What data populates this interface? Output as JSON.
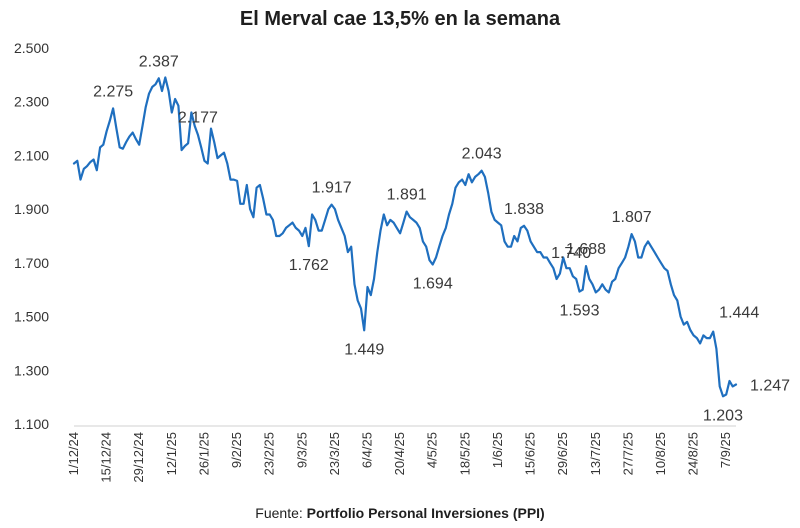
{
  "header": {
    "title": "El Merval cae 13,5% en la semana"
  },
  "footer": {
    "source_prefix": "Fuente:",
    "source_name": "Portfolio Personal Inversiones (PPI)"
  },
  "chart_data": {
    "type": "line",
    "title": "El Merval cae 13,5% en la semana",
    "xlabel": "",
    "ylabel": "",
    "ylim": [
      1100,
      2500
    ],
    "yticks": [
      1100,
      1300,
      1500,
      1700,
      1900,
      2100,
      2300,
      2500
    ],
    "ytick_labels": [
      "1.100",
      "1.300",
      "1.500",
      "1.700",
      "1.900",
      "2.100",
      "2.300",
      "2.500"
    ],
    "xticks": [
      {
        "index": 0,
        "label": "1/12/24"
      },
      {
        "index": 10,
        "label": "15/12/24"
      },
      {
        "index": 20,
        "label": "29/12/24"
      },
      {
        "index": 30,
        "label": "12/1/25"
      },
      {
        "index": 40,
        "label": "26/1/25"
      },
      {
        "index": 50,
        "label": "9/2/25"
      },
      {
        "index": 60,
        "label": "23/2/25"
      },
      {
        "index": 70,
        "label": "9/3/25"
      },
      {
        "index": 80,
        "label": "23/3/25"
      },
      {
        "index": 90,
        "label": "6/4/25"
      },
      {
        "index": 100,
        "label": "20/4/25"
      },
      {
        "index": 110,
        "label": "4/5/25"
      },
      {
        "index": 120,
        "label": "18/5/25"
      },
      {
        "index": 130,
        "label": "1/6/25"
      },
      {
        "index": 140,
        "label": "15/6/25"
      },
      {
        "index": 150,
        "label": "29/6/25"
      },
      {
        "index": 160,
        "label": "13/7/25"
      },
      {
        "index": 170,
        "label": "27/7/25"
      },
      {
        "index": 180,
        "label": "10/8/25"
      },
      {
        "index": 190,
        "label": "24/8/25"
      },
      {
        "index": 200,
        "label": "7/9/25"
      }
    ],
    "series": [
      {
        "name": "Merval",
        "color": "#1f6fbf",
        "values": [
          2070,
          2080,
          2010,
          2050,
          2060,
          2075,
          2085,
          2045,
          2130,
          2140,
          2190,
          2230,
          2275,
          2200,
          2130,
          2125,
          2150,
          2170,
          2185,
          2160,
          2140,
          2210,
          2280,
          2330,
          2355,
          2365,
          2387,
          2340,
          2390,
          2340,
          2260,
          2310,
          2285,
          2120,
          2135,
          2145,
          2260,
          2210,
          2177,
          2130,
          2080,
          2070,
          2200,
          2150,
          2090,
          2100,
          2110,
          2070,
          2010,
          2010,
          2005,
          1920,
          1920,
          1990,
          1900,
          1870,
          1980,
          1990,
          1940,
          1880,
          1880,
          1860,
          1800,
          1800,
          1810,
          1830,
          1840,
          1850,
          1830,
          1820,
          1800,
          1830,
          1762,
          1880,
          1860,
          1820,
          1820,
          1860,
          1900,
          1917,
          1900,
          1860,
          1830,
          1800,
          1740,
          1760,
          1620,
          1560,
          1530,
          1449,
          1610,
          1580,
          1640,
          1740,
          1820,
          1880,
          1840,
          1860,
          1850,
          1830,
          1810,
          1850,
          1891,
          1870,
          1860,
          1850,
          1830,
          1780,
          1760,
          1710,
          1694,
          1720,
          1760,
          1800,
          1830,
          1880,
          1920,
          1980,
          2000,
          2010,
          1990,
          2030,
          2000,
          2020,
          2030,
          2043,
          2020,
          1960,
          1890,
          1860,
          1850,
          1840,
          1780,
          1760,
          1760,
          1800,
          1780,
          1830,
          1838,
          1820,
          1780,
          1760,
          1740,
          1740,
          1720,
          1720,
          1700,
          1680,
          1640,
          1660,
          1720,
          1680,
          1680,
          1650,
          1640,
          1593,
          1600,
          1688,
          1640,
          1620,
          1590,
          1600,
          1620,
          1600,
          1590,
          1630,
          1640,
          1680,
          1700,
          1720,
          1760,
          1807,
          1780,
          1720,
          1720,
          1760,
          1780,
          1760,
          1740,
          1720,
          1700,
          1680,
          1670,
          1620,
          1580,
          1560,
          1500,
          1470,
          1480,
          1450,
          1430,
          1420,
          1400,
          1430,
          1420,
          1420,
          1444,
          1380,
          1240,
          1203,
          1210,
          1260,
          1240,
          1247
        ]
      }
    ],
    "annotations": [
      {
        "label": "2.275",
        "index": 12,
        "value": 2275,
        "pos": "above"
      },
      {
        "label": "2.387",
        "index": 26,
        "value": 2387,
        "pos": "above"
      },
      {
        "label": "2.177",
        "index": 38,
        "value": 2177,
        "pos": "above"
      },
      {
        "label": "1.917",
        "index": 79,
        "value": 1917,
        "pos": "above"
      },
      {
        "label": "1.762",
        "index": 72,
        "value": 1762,
        "pos": "below"
      },
      {
        "label": "1.891",
        "index": 102,
        "value": 1891,
        "pos": "above"
      },
      {
        "label": "1.449",
        "index": 89,
        "value": 1449,
        "pos": "below"
      },
      {
        "label": "1.694",
        "index": 110,
        "value": 1694,
        "pos": "below"
      },
      {
        "label": "2.043",
        "index": 125,
        "value": 2043,
        "pos": "above"
      },
      {
        "label": "1.838",
        "index": 138,
        "value": 1838,
        "pos": "above"
      },
      {
        "label": "1.740",
        "index": 142,
        "value": 1740,
        "pos": "right"
      },
      {
        "label": "1.688",
        "index": 157,
        "value": 1688,
        "pos": "above"
      },
      {
        "label": "1.593",
        "index": 155,
        "value": 1593,
        "pos": "below"
      },
      {
        "label": "1.807",
        "index": 171,
        "value": 1807,
        "pos": "above"
      },
      {
        "label": "1.444",
        "index": 196,
        "value": 1444,
        "pos": "above-right"
      },
      {
        "label": "1.203",
        "index": 199,
        "value": 1203,
        "pos": "below"
      },
      {
        "label": "1.247",
        "index": 203,
        "value": 1247,
        "pos": "right"
      }
    ]
  }
}
